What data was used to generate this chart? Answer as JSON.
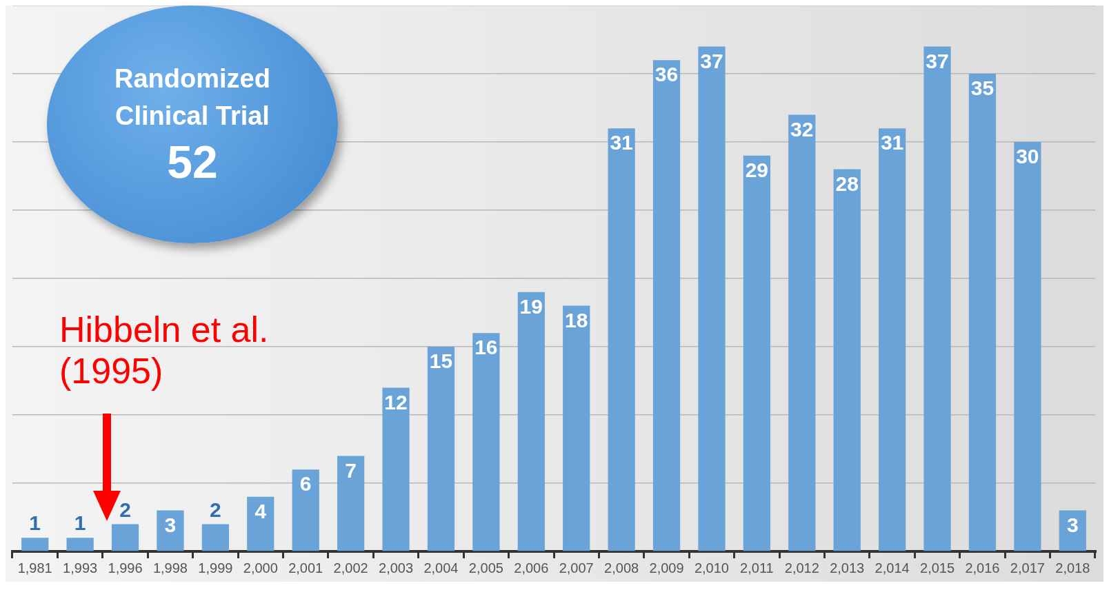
{
  "chart_data": {
    "type": "bar",
    "categories": [
      "1,981",
      "1,993",
      "1,996",
      "1,998",
      "1,999",
      "2,000",
      "2,001",
      "2,002",
      "2,003",
      "2,004",
      "2,005",
      "2,006",
      "2,007",
      "2,008",
      "2,009",
      "2,010",
      "2,011",
      "2,012",
      "2,013",
      "2,014",
      "2,015",
      "2,016",
      "2,017",
      "2,018"
    ],
    "values": [
      1,
      1,
      2,
      3,
      2,
      4,
      6,
      7,
      12,
      15,
      16,
      19,
      18,
      31,
      36,
      37,
      29,
      32,
      28,
      31,
      37,
      35,
      30,
      3
    ],
    "color": "#6aa3d8",
    "data_labels": true,
    "relative": false,
    "ylim": [
      0,
      40
    ],
    "yticks": [
      {
        "value": 0,
        "label": null
      },
      {
        "value": 5,
        "label": null
      },
      {
        "value": 10,
        "label": null
      },
      {
        "value": 15,
        "label": null
      },
      {
        "value": 20,
        "label": null
      },
      {
        "value": 25,
        "label": null
      },
      {
        "value": 30,
        "label": null
      },
      {
        "value": 35,
        "label": null
      },
      {
        "value": 40,
        "label": null
      }
    ],
    "tick_labels": "x",
    "grid": "y",
    "legend": false,
    "annotations": [
      "Randomized Clinical Trial",
      "52",
      "Hibbeln et al. (1995)"
    ]
  }
}
